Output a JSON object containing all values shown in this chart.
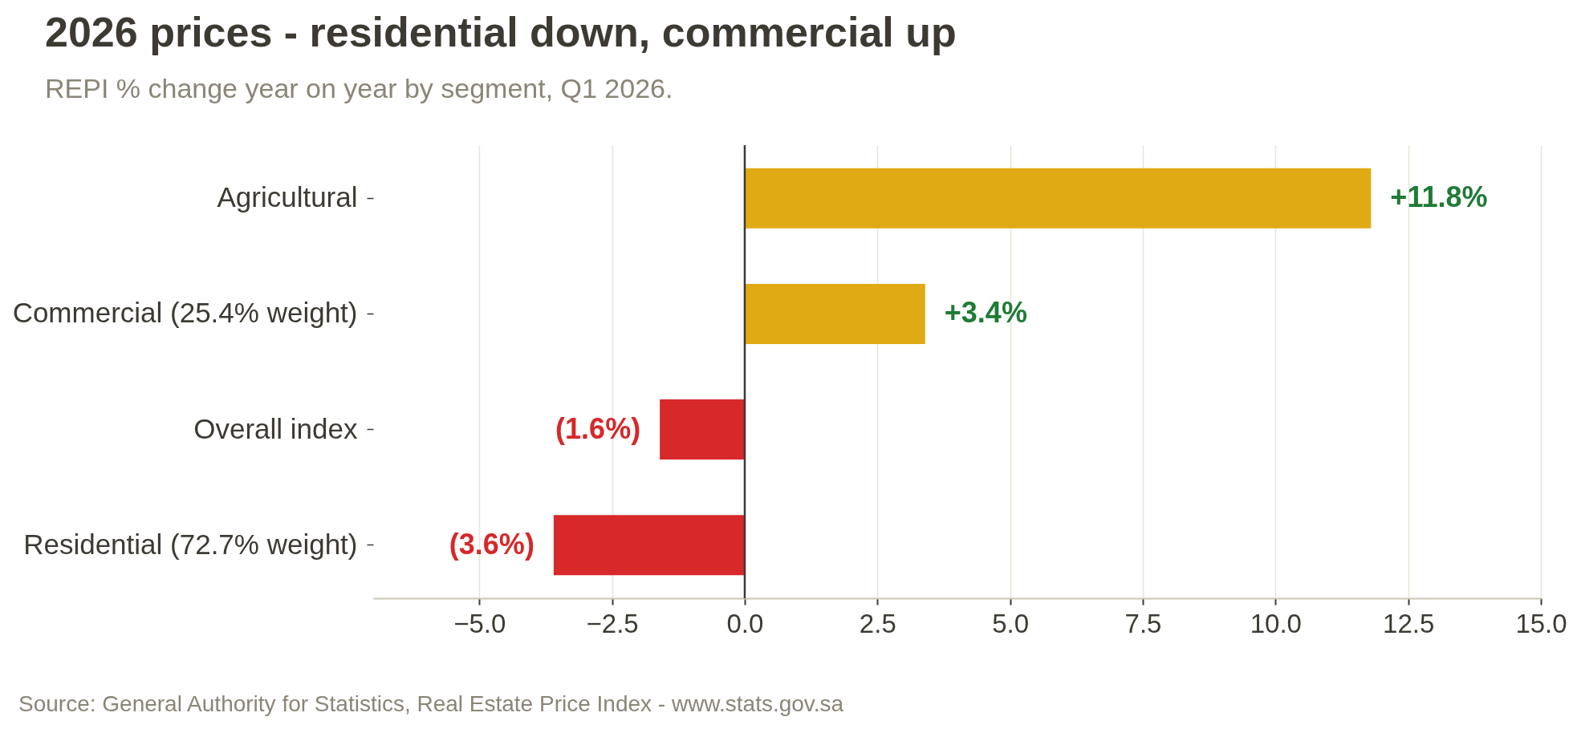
{
  "chart_data": {
    "type": "bar",
    "orientation": "horizontal",
    "title": "2026 prices - residential down, commercial up",
    "subtitle": "REPI % change year on year by segment, Q1 2026.",
    "categories": [
      "Agricultural",
      "Commercial (25.4% weight)",
      "Overall index",
      "Residential (72.7% weight)"
    ],
    "values": [
      11.8,
      3.4,
      -1.6,
      -3.6
    ],
    "colors": [
      "#dfaa14",
      "#dfaa14",
      "#d7282a",
      "#d7282a"
    ],
    "value_labels": [
      "+11.8%",
      "+3.4%",
      "(1.6%)",
      "(3.6%)"
    ],
    "xlim": [
      -7,
      15
    ],
    "xticks": [
      {
        "value": -5,
        "label": "−5.0"
      },
      {
        "value": -2.5,
        "label": "−2.5"
      },
      {
        "value": 0,
        "label": "0.0"
      },
      2.5,
      {
        "value": 5,
        "label": "5.0"
      },
      7.5,
      {
        "value": 10,
        "label": "10.0"
      },
      12.5,
      {
        "value": 15,
        "label": "15.0"
      }
    ],
    "grid": "x",
    "ref_lines": [
      {
        "axis": "x",
        "value": 0,
        "color": "#3d3a33"
      }
    ],
    "annotations": [
      "Source: General Authority for Statistics, Real Estate Price Index  -  www.stats.gov.sa"
    ]
  }
}
